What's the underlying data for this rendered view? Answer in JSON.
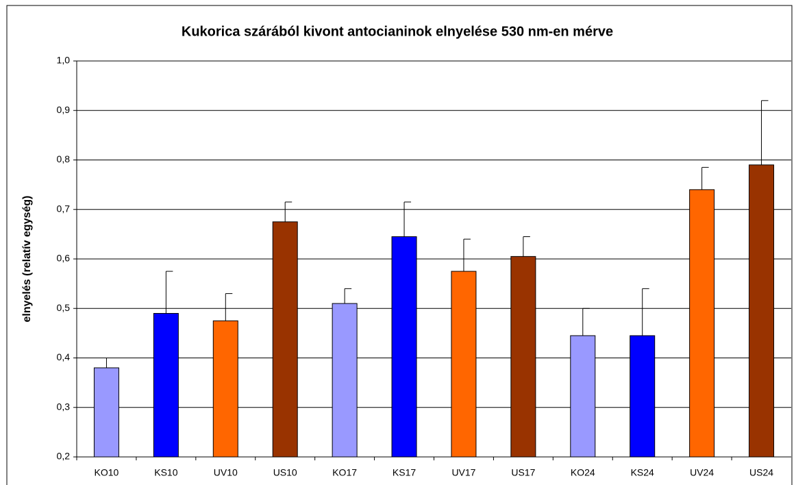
{
  "chart_data": {
    "type": "bar",
    "title": "Kukorica szárából kivont antocianinok elnyelése 530 nm-en mérve",
    "ylabel": "elnyelés (relatív egység)",
    "categories": [
      "KO10",
      "KS10",
      "UV10",
      "US10",
      "KO17",
      "KS17",
      "UV17",
      "US17",
      "KO24",
      "KS24",
      "UV24",
      "US24"
    ],
    "values": [
      0.38,
      0.49,
      0.475,
      0.675,
      0.51,
      0.645,
      0.575,
      0.605,
      0.445,
      0.445,
      0.74,
      0.79
    ],
    "errors": [
      0.02,
      0.085,
      0.055,
      0.04,
      0.03,
      0.07,
      0.065,
      0.04,
      0.055,
      0.095,
      0.045,
      0.13
    ],
    "colors": [
      "#9999ff",
      "#0000ff",
      "#ff6600",
      "#993300",
      "#9999ff",
      "#0000ff",
      "#ff6600",
      "#993300",
      "#9999ff",
      "#0000ff",
      "#ff6600",
      "#993300"
    ],
    "ylim": [
      0.2,
      1.0
    ],
    "yticks": [
      {
        "value": 0.2,
        "label": "0,2"
      },
      {
        "value": 0.3,
        "label": "0,3"
      },
      {
        "value": 0.4,
        "label": "0,4"
      },
      {
        "value": 0.5,
        "label": "0,5"
      },
      {
        "value": 0.6,
        "label": "0,6"
      },
      {
        "value": 0.7,
        "label": "0,7"
      },
      {
        "value": 0.8,
        "label": "0,8"
      },
      {
        "value": 0.9,
        "label": "0,9"
      },
      {
        "value": 1.0,
        "label": "1,0"
      }
    ],
    "grid": true
  }
}
